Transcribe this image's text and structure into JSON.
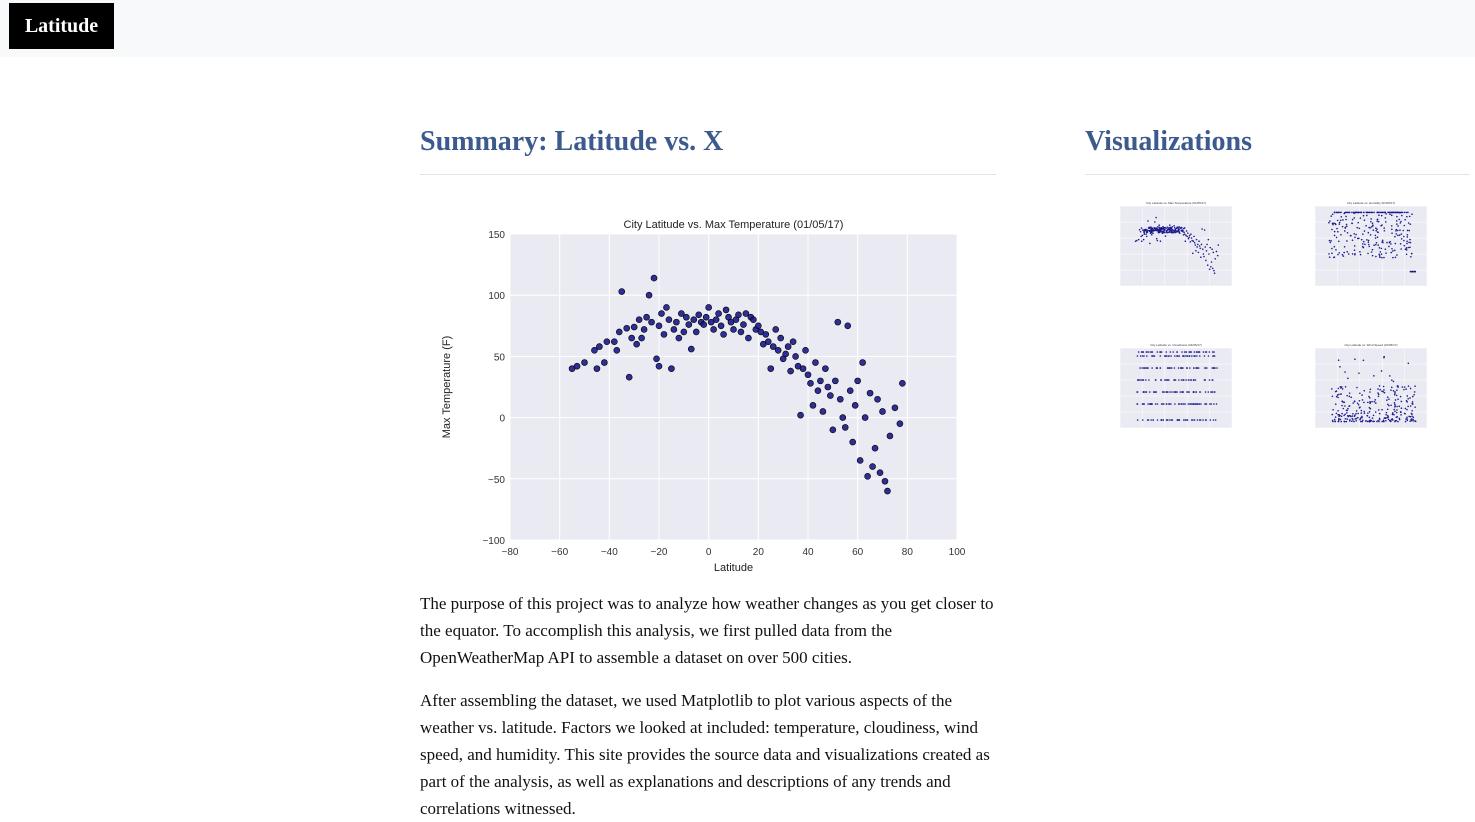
{
  "navbar": {
    "brand": "Latitude"
  },
  "main": {
    "title": "Summary: Latitude vs. X",
    "paragraphs": [
      "The purpose of this project was to analyze how weather changes as you get closer to the equator. To accomplish this analysis, we first pulled data from the OpenWeatherMap API to assemble a dataset on over 500 cities.",
      "After assembling the dataset, we used Matplotlib to plot various aspects of the weather vs. latitude. Factors we looked at included: temperature, cloudiness, wind speed, and humidity. This site provides the source data and visualizations created as part of the analysis, as well as explanations and descriptions of any trends and correlations witnessed."
    ]
  },
  "sidebar": {
    "title": "Visualizations",
    "thumbnails": [
      {
        "title": "City Latitude vs. Max Temperature (01/05/17)"
      },
      {
        "title": "City Latitude vs. Humidity (01/05/17)"
      },
      {
        "title": "City Latitude vs. Cloudiness (01/05/17)"
      },
      {
        "title": "City Latitude vs. Wind Speed (01/05/17)"
      }
    ]
  },
  "colors": {
    "title": "#3c5a8d",
    "plot_bg": "#eaeaf2",
    "point": "#1a1a8c",
    "grid": "#ffffff"
  },
  "chart_data": {
    "type": "scatter",
    "title": "City Latitude vs. Max Temperature (01/05/17)",
    "xlabel": "Latitude",
    "ylabel": "Max Temperature (F)",
    "xlim": [
      -80,
      100
    ],
    "ylim": [
      -100,
      150
    ],
    "xticks": [
      "−80",
      "−60",
      "−40",
      "−20",
      "0",
      "20",
      "40",
      "60",
      "80",
      "100"
    ],
    "yticks": [
      "−100",
      "−50",
      "0",
      "50",
      "100",
      "150"
    ],
    "grid": true,
    "series": [
      {
        "points": [
          [
            -55,
            40
          ],
          [
            -53,
            42
          ],
          [
            -50,
            45
          ],
          [
            -46,
            55
          ],
          [
            -45,
            40
          ],
          [
            -44,
            58
          ],
          [
            -42,
            45
          ],
          [
            -41,
            62
          ],
          [
            -38,
            62
          ],
          [
            -37,
            55
          ],
          [
            -36,
            70
          ],
          [
            -35,
            103
          ],
          [
            -33,
            73
          ],
          [
            -32,
            33
          ],
          [
            -31,
            65
          ],
          [
            -30,
            74
          ],
          [
            -29,
            60
          ],
          [
            -28,
            80
          ],
          [
            -27,
            65
          ],
          [
            -26,
            72
          ],
          [
            -25,
            82
          ],
          [
            -24,
            100
          ],
          [
            -23,
            78
          ],
          [
            -22,
            114
          ],
          [
            -21,
            48
          ],
          [
            -20,
            42
          ],
          [
            -20,
            75
          ],
          [
            -19,
            85
          ],
          [
            -18,
            68
          ],
          [
            -17,
            90
          ],
          [
            -16,
            80
          ],
          [
            -15,
            40
          ],
          [
            -14,
            72
          ],
          [
            -13,
            78
          ],
          [
            -12,
            65
          ],
          [
            -11,
            85
          ],
          [
            -10,
            70
          ],
          [
            -9,
            82
          ],
          [
            -8,
            76
          ],
          [
            -7,
            56
          ],
          [
            -6,
            80
          ],
          [
            -5,
            70
          ],
          [
            -4,
            84
          ],
          [
            -3,
            78
          ],
          [
            -2,
            76
          ],
          [
            -1,
            82
          ],
          [
            0,
            90
          ],
          [
            1,
            78
          ],
          [
            2,
            72
          ],
          [
            3,
            80
          ],
          [
            4,
            85
          ],
          [
            5,
            75
          ],
          [
            6,
            68
          ],
          [
            7,
            88
          ],
          [
            8,
            82
          ],
          [
            9,
            78
          ],
          [
            10,
            72
          ],
          [
            11,
            80
          ],
          [
            12,
            84
          ],
          [
            13,
            70
          ],
          [
            14,
            76
          ],
          [
            15,
            85
          ],
          [
            16,
            65
          ],
          [
            17,
            82
          ],
          [
            18,
            80
          ],
          [
            19,
            72
          ],
          [
            20,
            75
          ],
          [
            21,
            70
          ],
          [
            22,
            60
          ],
          [
            23,
            68
          ],
          [
            24,
            62
          ],
          [
            25,
            40
          ],
          [
            26,
            58
          ],
          [
            27,
            72
          ],
          [
            28,
            55
          ],
          [
            29,
            65
          ],
          [
            30,
            48
          ],
          [
            31,
            52
          ],
          [
            32,
            58
          ],
          [
            33,
            38
          ],
          [
            34,
            62
          ],
          [
            35,
            50
          ],
          [
            36,
            42
          ],
          [
            37,
            2
          ],
          [
            38,
            40
          ],
          [
            39,
            55
          ],
          [
            40,
            35
          ],
          [
            41,
            28
          ],
          [
            42,
            10
          ],
          [
            43,
            45
          ],
          [
            44,
            22
          ],
          [
            45,
            30
          ],
          [
            46,
            5
          ],
          [
            47,
            40
          ],
          [
            48,
            25
          ],
          [
            49,
            18
          ],
          [
            50,
            -10
          ],
          [
            51,
            30
          ],
          [
            52,
            78
          ],
          [
            53,
            15
          ],
          [
            54,
            0
          ],
          [
            55,
            -8
          ],
          [
            56,
            75
          ],
          [
            57,
            22
          ],
          [
            58,
            -20
          ],
          [
            59,
            10
          ],
          [
            60,
            30
          ],
          [
            61,
            -35
          ],
          [
            62,
            45
          ],
          [
            63,
            0
          ],
          [
            64,
            -48
          ],
          [
            65,
            20
          ],
          [
            66,
            -40
          ],
          [
            67,
            -25
          ],
          [
            68,
            15
          ],
          [
            69,
            -45
          ],
          [
            70,
            5
          ],
          [
            71,
            -52
          ],
          [
            72,
            -60
          ],
          [
            73,
            -15
          ],
          [
            75,
            8
          ],
          [
            77,
            -5
          ],
          [
            78,
            28
          ]
        ]
      }
    ]
  }
}
